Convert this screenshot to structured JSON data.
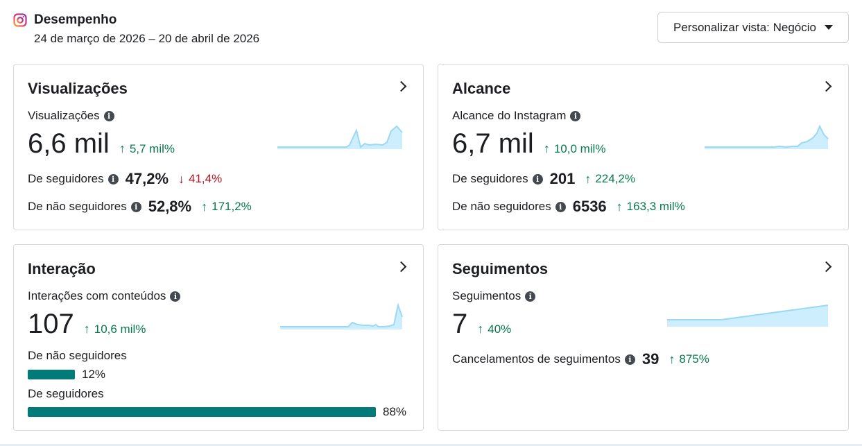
{
  "header": {
    "title": "Desempenho",
    "date_range": "24 de março de 2026 – 20 de abril de 2026",
    "view_button": "Personalizar vista: Negócio"
  },
  "colors": {
    "up": "#067a4c",
    "down": "#b3141f",
    "bar": "#017a7a",
    "spark": "#9bd8f5"
  },
  "cards": {
    "views": {
      "title": "Visualizações",
      "metric_label": "Visualizações",
      "value": "6,6 mil",
      "delta": "5,7 mil%",
      "rows": [
        {
          "label": "De seguidores",
          "value": "47,2%",
          "delta": "41,4%",
          "direction": "down"
        },
        {
          "label": "De não seguidores",
          "value": "52,8%",
          "delta": "171,2%",
          "direction": "up"
        }
      ]
    },
    "reach": {
      "title": "Alcance",
      "metric_label": "Alcance do Instagram",
      "value": "6,7 mil",
      "delta": "10,0 mil%",
      "rows": [
        {
          "label": "De seguidores",
          "value": "201",
          "delta": "224,2%",
          "direction": "up"
        },
        {
          "label": "De não seguidores",
          "value": "6536",
          "delta": "163,3 mil%",
          "direction": "up"
        }
      ]
    },
    "interaction": {
      "title": "Interação",
      "metric_label": "Interações com conteúdos",
      "value": "107",
      "delta": "10,6 mil%",
      "bars": [
        {
          "label": "De não seguidores",
          "pct": "12%",
          "fraction": 0.12
        },
        {
          "label": "De seguidores",
          "pct": "88%",
          "fraction": 0.88
        }
      ]
    },
    "follows": {
      "title": "Seguimentos",
      "metric_label": "Seguimentos",
      "value": "7",
      "delta": "40%",
      "rows": [
        {
          "label": "Cancelamentos de seguimentos",
          "value": "39",
          "delta": "875%",
          "direction": "up"
        }
      ]
    }
  }
}
